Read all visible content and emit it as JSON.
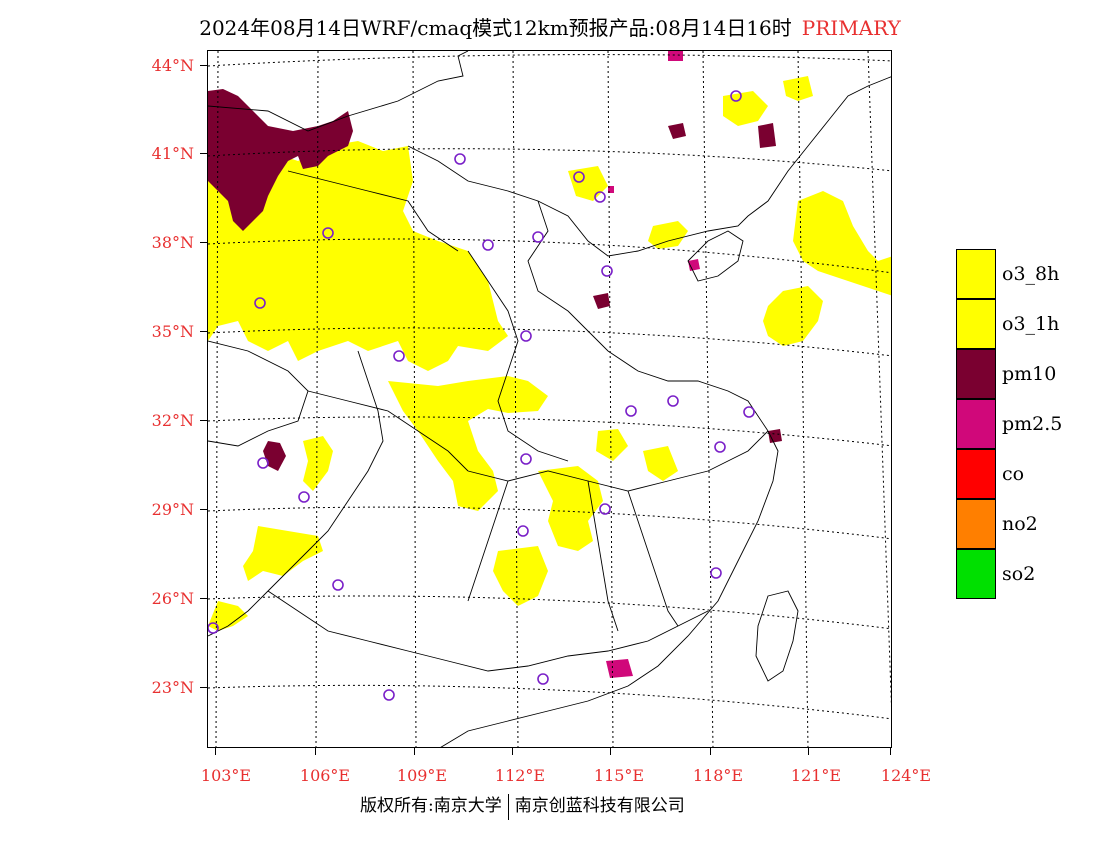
{
  "title": {
    "main": "2024年08月14日WRF/cmaq模式12km预报产品:08月14日16时",
    "tag": "PRIMARY"
  },
  "latitude_labels": [
    "44°N",
    "41°N",
    "38°N",
    "35°N",
    "32°N",
    "29°N",
    "26°N",
    "23°N"
  ],
  "longitude_labels": [
    "103°E",
    "106°E",
    "109°E",
    "112°E",
    "115°E",
    "118°E",
    "121°E",
    "124°E"
  ],
  "legend": [
    {
      "label": "o3_8h",
      "color": "#ffff00"
    },
    {
      "label": "o3_1h",
      "color": "#ffff00"
    },
    {
      "label": "pm10",
      "color": "#7a0030"
    },
    {
      "label": "pm2.5",
      "color": "#d0087a"
    },
    {
      "label": "co",
      "color": "#ff0000"
    },
    {
      "label": "no2",
      "color": "#ff7f00"
    },
    {
      "label": "so2",
      "color": "#00e000"
    }
  ],
  "footer": {
    "copyright": "版权所有:南京大学",
    "company": "南京创蓝科技有限公司"
  }
}
